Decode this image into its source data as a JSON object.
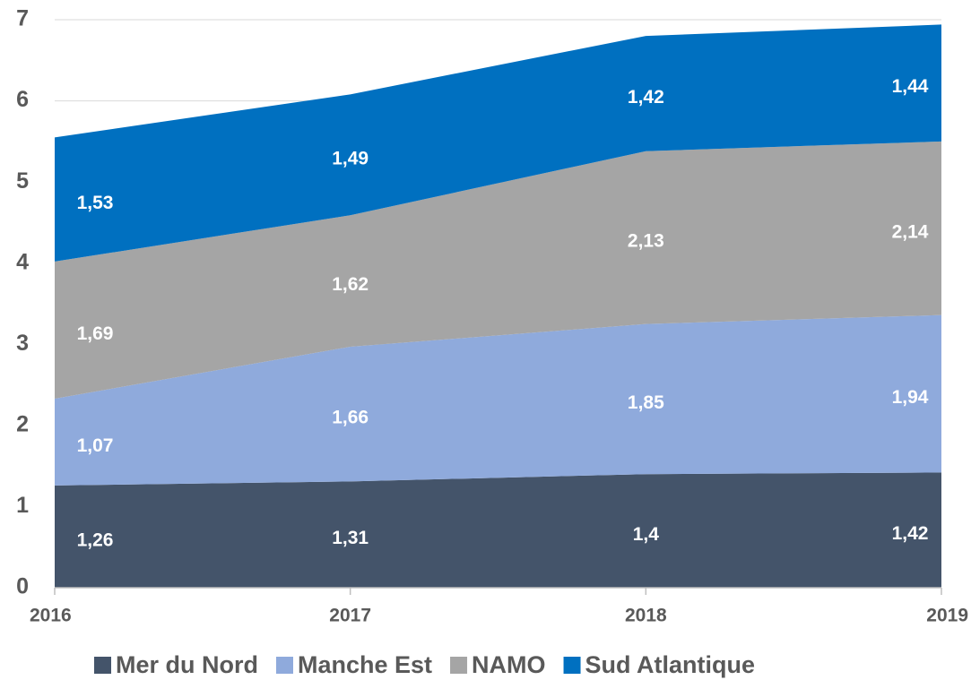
{
  "chart_data": {
    "type": "stacked_area",
    "categories": [
      "2016",
      "2017",
      "2018",
      "2019"
    ],
    "series": [
      {
        "name": "Mer du Nord",
        "color": "#44546a",
        "values": [
          1.26,
          1.31,
          1.4,
          1.42
        ],
        "value_labels": [
          "1,26",
          "1,31",
          "1,4",
          "1,42"
        ]
      },
      {
        "name": "Manche Est",
        "color": "#8faadc",
        "values": [
          1.07,
          1.66,
          1.85,
          1.94
        ],
        "value_labels": [
          "1,07",
          "1,66",
          "1,85",
          "1,94"
        ]
      },
      {
        "name": "NAMO",
        "color": "#a5a5a5",
        "values": [
          1.69,
          1.62,
          2.13,
          2.14
        ],
        "value_labels": [
          "1,69",
          "1,62",
          "2,13",
          "2,14"
        ]
      },
      {
        "name": "Sud Atlantique",
        "color": "#0070c0",
        "values": [
          1.53,
          1.49,
          1.42,
          1.44
        ],
        "value_labels": [
          "1,53",
          "1,49",
          "1,42",
          "1,44"
        ]
      }
    ],
    "ylim": [
      0,
      7
    ],
    "yticks": [
      0,
      1,
      2,
      3,
      4,
      5,
      6,
      7
    ],
    "grid": true,
    "legend": "bottom"
  }
}
